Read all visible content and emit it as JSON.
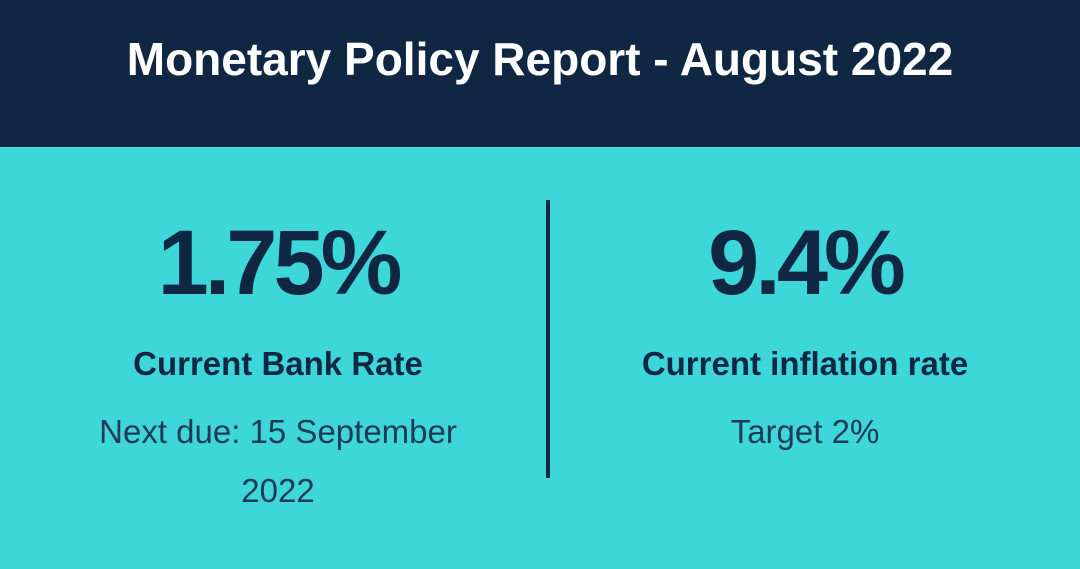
{
  "header": {
    "title": "Monetary Policy Report - August 2022"
  },
  "stats": {
    "bank_rate": {
      "value": "1.75%",
      "label": "Current Bank Rate",
      "sub": "Next due: 15 September 2022"
    },
    "inflation": {
      "value": "9.4%",
      "label": "Current inflation rate",
      "sub": "Target 2%"
    }
  },
  "colors": {
    "header_bg": "#0f2742",
    "panel_bg": "#3dd7da",
    "text_dark": "#0f2742",
    "header_text": "#ffffff"
  }
}
